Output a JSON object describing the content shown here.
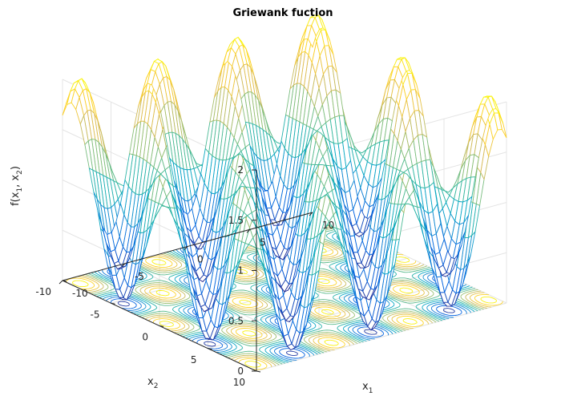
{
  "chart_data": {
    "type": "surface",
    "function": "f(x1,x2) = 1 + (x1^2 + x2^2)/4000 - cos(x1)*cos(x2/sqrt(2))",
    "title": "Griewank fuction",
    "xlabel": "x",
    "xlabel_sub": "1",
    "ylabel": "x",
    "ylabel_sub": "2",
    "zlabel_parts": [
      "f(x",
      "1",
      ", x",
      "2",
      ")"
    ],
    "xlim": [
      -10,
      10
    ],
    "ylim": [
      -10,
      10
    ],
    "zlim": [
      0,
      2
    ],
    "x_ticks": [
      "-10",
      "-5",
      "0",
      "5",
      "10"
    ],
    "y_ticks": [
      "-10",
      "-5",
      "0",
      "5",
      "10"
    ],
    "z_ticks": [
      "0",
      "0.5",
      "1",
      "1.5",
      "2"
    ],
    "grid": true,
    "colormap": "parula",
    "colors": [
      "#352a87",
      "#0363e1",
      "#1485d4",
      "#06a7c6",
      "#38b99e",
      "#92bf73",
      "#d9ba56",
      "#fcce2e",
      "#f9fb0e"
    ],
    "contour_at_base": true
  }
}
